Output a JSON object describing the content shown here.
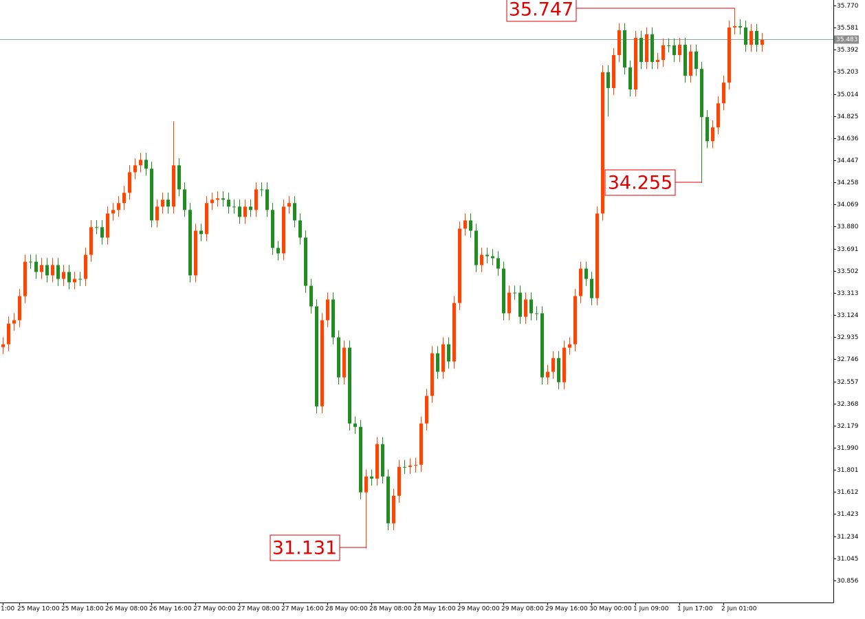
{
  "chart_data": {
    "type": "candlestick",
    "up_color": "#ff4500",
    "down_color": "#228b22",
    "ylim": [
      30.667,
      35.817
    ],
    "yticks": [
      {
        "value": 35.77,
        "label": "35.770"
      },
      35.581,
      35.392,
      35.203,
      35.014,
      34.825,
      34.636,
      34.447,
      34.258,
      34.069,
      {
        "value": 33.88,
        "label": "33.880"
      },
      33.691,
      33.502,
      33.313,
      33.124,
      32.935,
      32.746,
      32.557,
      32.368,
      32.179,
      {
        "value": 31.99,
        "label": "31.990"
      },
      31.801,
      31.612,
      31.423,
      31.234,
      31.045,
      30.856
    ],
    "current_price": 35.483,
    "categories": [
      "1:00",
      null,
      null,
      "25 May 10:00",
      null,
      null,
      null,
      null,
      null,
      null,
      null,
      "25 May 18:00",
      null,
      null,
      null,
      null,
      null,
      null,
      null,
      "26 May 08:00",
      null,
      null,
      null,
      null,
      null,
      null,
      null,
      "26 May 16:00",
      null,
      null,
      null,
      null,
      null,
      null,
      null,
      "27 May 00:00",
      null,
      null,
      null,
      null,
      null,
      null,
      null,
      "27 May 08:00",
      null,
      null,
      null,
      null,
      null,
      null,
      null,
      "27 May 16:00",
      null,
      null,
      null,
      null,
      null,
      null,
      null,
      "28 May 00:00",
      null,
      null,
      null,
      null,
      null,
      null,
      null,
      "28 May 08:00",
      null,
      null,
      null,
      null,
      null,
      null,
      null,
      "28 May 16:00",
      null,
      null,
      null,
      null,
      null,
      null,
      null,
      "29 May 00:00",
      null,
      null,
      null,
      null,
      null,
      null,
      null,
      "29 May 08:00",
      null,
      null,
      null,
      null,
      null,
      null,
      null,
      "29 May 16:00",
      null,
      null,
      null,
      null,
      null,
      null,
      null,
      "30 May 00:00",
      null,
      null,
      null,
      null,
      null,
      null,
      null,
      "1 Jun 09:00",
      null,
      null,
      null,
      null,
      null,
      null,
      null,
      "1 Jun 17:00",
      null,
      null,
      null,
      null,
      null,
      null,
      null,
      "2 Jun 01:00",
      null,
      null,
      null,
      null,
      null,
      null,
      null
    ],
    "open": [
      32.85,
      32.874,
      33.051,
      33.08,
      33.286,
      33.58,
      33.58,
      33.492,
      33.551,
      33.463,
      33.551,
      33.433,
      33.492,
      33.404,
      33.433,
      33.433,
      33.639,
      33.875,
      33.875,
      33.786,
      33.992,
      34.022,
      34.081,
      34.169,
      34.345,
      34.404,
      34.451,
      34.375,
      33.933,
      34.051,
      34.11,
      34.051,
      34.404,
      34.198,
      34.022,
      33.463,
      33.845,
      33.816,
      34.081,
      34.11,
      34.122,
      34.11,
      34.051,
      34.051,
      33.963,
      34.051,
      34.022,
      34.198,
      34.198,
      34.022,
      33.698,
      33.651,
      34.051,
      34.081,
      33.933,
      33.786,
      33.374,
      33.198,
      32.344,
      33.08,
      33.257,
      32.933,
      32.591,
      32.845,
      32.197,
      32.168,
      31.609,
      31.744,
      31.726,
      32.021,
      31.744,
      31.344,
      31.579,
      31.826,
      31.826,
      31.838,
      31.844,
      32.197,
      32.433,
      32.797,
      32.639,
      32.874,
      32.727,
      33.227,
      33.863,
      33.933,
      33.845,
      33.551,
      33.639,
      33.627,
      33.61,
      33.521,
      33.139,
      33.315,
      33.315,
      33.109,
      33.257,
      33.139,
      33.139,
      32.591,
      32.639,
      32.756,
      32.55,
      32.845,
      32.874,
      33.286,
      33.521,
      33.433,
      33.268,
      33.992,
      35.199,
      35.064,
      35.346,
      35.558,
      35.24,
      35.052,
      35.493,
      35.287,
      35.523,
      35.287,
      35.305,
      35.429,
      35.429,
      35.346,
      35.434,
      35.17,
      35.376,
      35.228,
      34.816,
      34.61,
      34.728,
      34.934,
      35.111,
      35.582,
      35.593,
      35.582,
      35.434,
      35.552,
      35.434
    ],
    "high": [
      32.934,
      33.111,
      33.14,
      33.346,
      33.64,
      33.64,
      33.64,
      33.611,
      33.611,
      33.611,
      33.611,
      33.552,
      33.552,
      33.493,
      33.493,
      33.699,
      33.935,
      33.935,
      33.935,
      34.052,
      34.082,
      34.141,
      34.229,
      34.405,
      34.464,
      34.511,
      34.511,
      34.435,
      34.111,
      34.17,
      34.17,
      34.78,
      34.464,
      34.258,
      34.082,
      33.905,
      33.905,
      34.141,
      34.17,
      34.182,
      34.182,
      34.17,
      34.111,
      34.111,
      34.111,
      34.111,
      34.258,
      34.258,
      34.258,
      34.082,
      33.758,
      34.111,
      34.141,
      34.141,
      33.993,
      33.846,
      33.434,
      33.258,
      33.14,
      33.317,
      33.317,
      32.993,
      32.905,
      32.905,
      32.257,
      32.228,
      31.804,
      31.804,
      32.081,
      32.081,
      31.804,
      31.639,
      31.886,
      31.886,
      31.898,
      31.904,
      32.257,
      32.493,
      32.857,
      32.857,
      32.934,
      32.934,
      33.287,
      33.923,
      33.993,
      33.993,
      33.905,
      33.699,
      33.699,
      33.687,
      33.67,
      33.581,
      33.375,
      33.375,
      33.375,
      33.317,
      33.317,
      33.199,
      33.199,
      32.699,
      32.816,
      32.816,
      32.905,
      32.934,
      33.346,
      33.581,
      33.581,
      33.493,
      34.052,
      35.259,
      35.259,
      35.406,
      35.618,
      35.618,
      35.3,
      35.553,
      35.553,
      35.583,
      35.583,
      35.365,
      35.489,
      35.489,
      35.489,
      35.494,
      35.494,
      35.436,
      35.436,
      35.288,
      34.876,
      34.788,
      34.994,
      35.171,
      35.642,
      35.747,
      35.653,
      35.642,
      35.612,
      35.612,
      35.536
    ],
    "low": [
      32.79,
      32.814,
      32.991,
      33.02,
      33.226,
      33.52,
      33.432,
      33.432,
      33.403,
      33.403,
      33.373,
      33.373,
      33.344,
      33.344,
      33.373,
      33.373,
      33.579,
      33.815,
      33.726,
      33.726,
      33.932,
      33.962,
      34.021,
      34.109,
      34.285,
      34.344,
      34.315,
      33.873,
      33.873,
      33.991,
      33.991,
      33.991,
      34.138,
      33.962,
      33.403,
      33.403,
      33.756,
      33.756,
      34.021,
      34.05,
      34.05,
      33.991,
      33.991,
      33.903,
      33.903,
      33.962,
      33.962,
      34.138,
      33.962,
      33.638,
      33.591,
      33.591,
      33.991,
      33.873,
      33.726,
      33.314,
      33.138,
      32.284,
      32.284,
      33.02,
      32.873,
      32.531,
      32.531,
      32.137,
      32.108,
      31.549,
      31.131,
      31.666,
      31.666,
      31.684,
      31.284,
      31.284,
      31.519,
      31.766,
      31.766,
      31.778,
      31.784,
      32.137,
      32.373,
      32.579,
      32.579,
      32.667,
      32.667,
      33.167,
      33.803,
      33.785,
      33.491,
      33.491,
      33.567,
      33.55,
      33.461,
      33.079,
      33.079,
      33.255,
      33.049,
      33.049,
      33.079,
      33.079,
      32.531,
      32.531,
      32.579,
      32.49,
      32.49,
      32.785,
      32.814,
      33.226,
      33.373,
      33.208,
      33.208,
      33.932,
      34.82,
      35.004,
      35.286,
      35.18,
      34.992,
      34.992,
      35.227,
      35.227,
      35.227,
      35.227,
      35.245,
      35.369,
      35.286,
      35.286,
      35.11,
      35.11,
      35.168,
      34.255,
      34.55,
      34.55,
      34.668,
      34.874,
      35.051,
      35.522,
      35.522,
      35.374,
      35.374,
      35.374,
      35.374
    ],
    "close": [
      32.874,
      33.051,
      33.08,
      33.286,
      33.58,
      33.58,
      33.492,
      33.551,
      33.463,
      33.551,
      33.433,
      33.492,
      33.404,
      33.433,
      33.433,
      33.639,
      33.875,
      33.875,
      33.786,
      33.992,
      34.022,
      34.081,
      34.169,
      34.345,
      34.404,
      34.451,
      34.375,
      33.933,
      34.051,
      34.11,
      34.051,
      34.404,
      34.198,
      34.022,
      33.463,
      33.845,
      33.816,
      34.081,
      34.11,
      34.122,
      34.11,
      34.051,
      34.051,
      33.963,
      34.051,
      34.022,
      34.198,
      34.198,
      34.022,
      33.698,
      33.651,
      34.051,
      34.081,
      33.933,
      33.786,
      33.374,
      33.198,
      32.344,
      33.08,
      33.257,
      32.933,
      32.591,
      32.845,
      32.197,
      32.168,
      31.609,
      31.744,
      31.726,
      32.021,
      31.744,
      31.344,
      31.579,
      31.826,
      31.826,
      31.838,
      31.844,
      32.197,
      32.433,
      32.797,
      32.639,
      32.874,
      32.727,
      33.227,
      33.863,
      33.933,
      33.845,
      33.551,
      33.639,
      33.627,
      33.61,
      33.521,
      33.139,
      33.315,
      33.315,
      33.109,
      33.257,
      33.139,
      33.139,
      32.591,
      32.639,
      32.756,
      32.55,
      32.845,
      32.874,
      33.286,
      33.521,
      33.433,
      33.268,
      33.992,
      35.199,
      35.064,
      35.346,
      35.558,
      35.24,
      35.052,
      35.493,
      35.287,
      35.523,
      35.287,
      35.305,
      35.429,
      35.429,
      35.346,
      35.434,
      35.17,
      35.376,
      35.228,
      34.816,
      34.61,
      34.728,
      34.934,
      35.111,
      35.582,
      35.593,
      35.582,
      35.434,
      35.552,
      35.434,
      35.476
    ]
  }
}
